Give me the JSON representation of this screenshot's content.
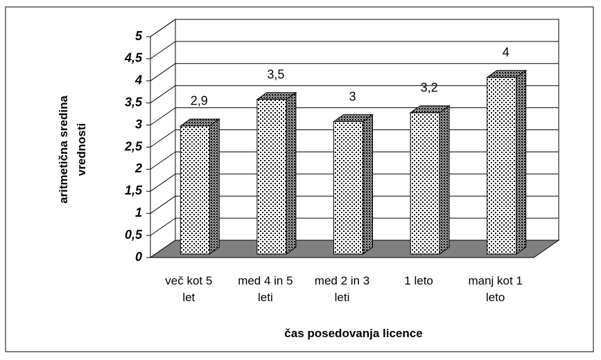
{
  "chart_data": {
    "type": "bar3d",
    "x_label": "čas posedovanja licence",
    "y_label": "aritmetična sredina vrednosti",
    "categories": [
      "več kot 5 let",
      "med 4 in 5 leti",
      "med 2 in 3 leti",
      "1 leto",
      "manj kot 1 leto"
    ],
    "values": [
      2.9,
      3.5,
      3,
      3.2,
      4
    ],
    "value_labels": [
      "2,9",
      "3,5",
      "3",
      "3,2",
      "4"
    ],
    "ylim": [
      0,
      5
    ],
    "yticks": [
      0,
      {
        "value": 0.5,
        "label": "0,5"
      },
      1,
      {
        "value": 1.5,
        "label": "1,5"
      },
      2,
      {
        "value": 2.5,
        "label": "2,5"
      },
      3,
      {
        "value": 3.5,
        "label": "3,5"
      },
      4,
      {
        "value": 4.5,
        "label": "4,5"
      },
      5
    ],
    "grid": true,
    "floor_color": "#808080"
  }
}
